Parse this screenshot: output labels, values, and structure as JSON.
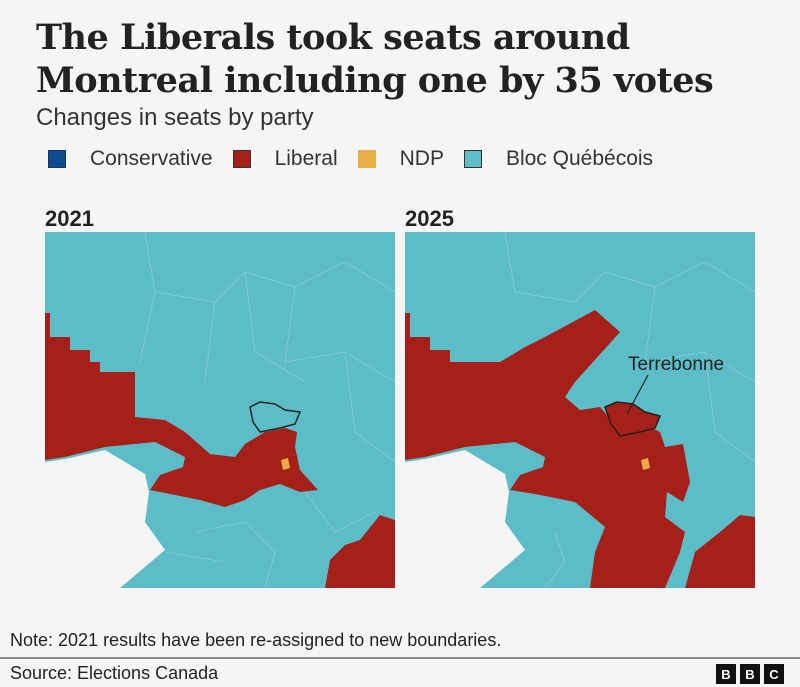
{
  "title": "The Liberals took seats around Montreal including one by 35 votes",
  "subtitle": "Changes in seats by party",
  "legend": [
    {
      "label": "Conservative",
      "color": "#0e4c8e"
    },
    {
      "label": "Liberal",
      "color": "#a6201a"
    },
    {
      "label": "NDP",
      "color": "#e8ae47"
    },
    {
      "label": "Bloc Québécois",
      "color": "#5cbdc8"
    }
  ],
  "maps": [
    {
      "year": "2021"
    },
    {
      "year": "2025",
      "annotation": "Terrebonne"
    }
  ],
  "note": "Note: 2021 results have been re-assigned to new boundaries.",
  "source": "Source: Elections Canada",
  "logo": [
    "B",
    "B",
    "C"
  ]
}
